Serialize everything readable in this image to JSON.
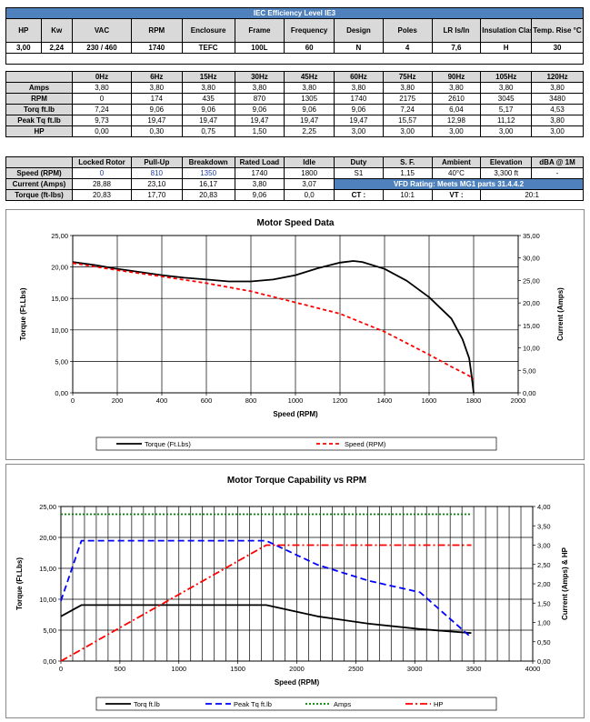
{
  "specs": {
    "title": "IEC Efficiency Level IE3",
    "headers": [
      "HP",
      "Kw",
      "VAC",
      "RPM",
      "Enclosure",
      "Frame",
      "Frequency",
      "Design",
      "Poles",
      "LR Is/In",
      "Insulation Class",
      "Temp. Rise °C"
    ],
    "values": [
      "3,00",
      "2,24",
      "230 / 460",
      "1740",
      "TEFC",
      "100L",
      "60",
      "N",
      "4",
      "7,6",
      "H",
      "30"
    ]
  },
  "freq_table": {
    "headers": [
      "0Hz",
      "6Hz",
      "15Hz",
      "30Hz",
      "45Hz",
      "60Hz",
      "75Hz",
      "90Hz",
      "105Hz",
      "120Hz"
    ],
    "rows": [
      {
        "label": "Amps",
        "values": [
          "3,80",
          "3,80",
          "3,80",
          "3,80",
          "3,80",
          "3,80",
          "3,80",
          "3,80",
          "3,80",
          "3,80"
        ]
      },
      {
        "label": "RPM",
        "values": [
          "0",
          "174",
          "435",
          "870",
          "1305",
          "1740",
          "2175",
          "2610",
          "3045",
          "3480"
        ]
      },
      {
        "label": "Torq ft.lb",
        "values": [
          "7,24",
          "9,06",
          "9,06",
          "9,06",
          "9,06",
          "9,06",
          "7,24",
          "6,04",
          "5,17",
          "4,53"
        ]
      },
      {
        "label": "Peak Tq ft.lb",
        "values": [
          "9,73",
          "19,47",
          "19,47",
          "19,47",
          "19,47",
          "19,47",
          "15,57",
          "12,98",
          "11,12",
          "3,80"
        ]
      },
      {
        "label": "HP",
        "values": [
          "0,00",
          "0,30",
          "0,75",
          "1,50",
          "2,25",
          "3,00",
          "3,00",
          "3,00",
          "3,00",
          "3,00"
        ]
      }
    ]
  },
  "perf_table": {
    "headers": [
      "Locked Rotor",
      "Pull-Up",
      "Breakdown",
      "Rated Load",
      "Idle",
      "Duty",
      "S. F.",
      "Ambient",
      "Elevation",
      "dBA @ 1M"
    ],
    "speed_label": "Speed (RPM)",
    "speed_values": [
      "0",
      "810",
      "1350",
      "1740",
      "1800"
    ],
    "current_label": "Current (Amps)",
    "current_values": [
      "28,88",
      "23,10",
      "16,17",
      "3,80",
      "3,07"
    ],
    "torque_label": "Torque (ft-lbs)",
    "torque_values": [
      "20,83",
      "17,70",
      "20,83",
      "9,06",
      "0,0"
    ],
    "duty": "S1",
    "sf": "1,15",
    "ambient": "40°C",
    "elevation": "3,300 ft",
    "dba": "-",
    "vfd_rating": "VFD Rating: Meets MG1 parts 31.4.4.2",
    "ct_label": "CT :",
    "ct_value": "10:1",
    "vt_label": "VT :",
    "vt_value": "20:1"
  },
  "chart_data": [
    {
      "type": "line",
      "title": "Motor Speed Data",
      "xlabel": "Speed (RPM)",
      "ylabel": "Torque (Ft.Lbs)",
      "y2label": "Current (Amps)",
      "xlim": [
        0,
        2000
      ],
      "ylim": [
        0,
        25
      ],
      "y2lim": [
        0,
        35
      ],
      "xticks": [
        "0",
        "200",
        "400",
        "600",
        "800",
        "1000",
        "1200",
        "1400",
        "1600",
        "1800",
        "2000"
      ],
      "yticks": [
        "0,00",
        "5,00",
        "10,00",
        "15,00",
        "20,00",
        "25,00"
      ],
      "y2ticks": [
        "0,00",
        "5,00",
        "10,00",
        "15,00",
        "20,00",
        "25,00",
        "30,00",
        "35,00"
      ],
      "series": [
        {
          "name": "Torque (Ft.Lbs)",
          "axis": "y",
          "color": "#000000",
          "dash": "solid",
          "x": [
            0,
            100,
            200,
            300,
            400,
            500,
            600,
            700,
            800,
            900,
            1000,
            1100,
            1200,
            1260,
            1300,
            1400,
            1500,
            1600,
            1700,
            1750,
            1780,
            1790,
            1795,
            1800
          ],
          "y": [
            20.8,
            20.3,
            19.7,
            19.2,
            18.7,
            18.3,
            18.0,
            17.7,
            17.7,
            18.0,
            18.7,
            19.8,
            20.7,
            20.95,
            20.8,
            19.7,
            17.8,
            15.2,
            11.8,
            8.5,
            5.5,
            3.0,
            1.5,
            0.0
          ]
        },
        {
          "name": "Speed (RPM)",
          "axis": "y2",
          "color": "#ff0000",
          "dash": "dashed",
          "x": [
            0,
            200,
            400,
            600,
            800,
            1000,
            1200,
            1400,
            1600,
            1700,
            1760,
            1790,
            1800
          ],
          "y": [
            28.88,
            27.3,
            25.9,
            24.4,
            22.6,
            20.1,
            17.6,
            13.6,
            8.5,
            5.8,
            4.3,
            3.5,
            3.07
          ]
        }
      ]
    },
    {
      "type": "line",
      "title": "Motor Torque Capability vs RPM",
      "xlabel": "Speed (RPM)",
      "ylabel": "Torque (Ft.Lbs)",
      "y2label": "Current (Amps) & HP",
      "xlim": [
        0,
        4000
      ],
      "ylim": [
        0,
        25
      ],
      "y2lim": [
        0,
        4
      ],
      "xticks": [
        "0",
        "500",
        "1000",
        "1500",
        "2000",
        "2500",
        "3000",
        "3500",
        "4000"
      ],
      "yticks": [
        "0,00",
        "5,00",
        "10,00",
        "15,00",
        "20,00",
        "25,00"
      ],
      "y2ticks": [
        "0,00",
        "0,50",
        "1,00",
        "1,50",
        "2,00",
        "2,50",
        "3,00",
        "3,50",
        "4,00"
      ],
      "series": [
        {
          "name": "Torq ft.lb",
          "axis": "y",
          "color": "#000000",
          "dash": "solid",
          "x": [
            0,
            174,
            435,
            870,
            1305,
            1740,
            2175,
            2610,
            3045,
            3480
          ],
          "y": [
            7.24,
            9.06,
            9.06,
            9.06,
            9.06,
            9.06,
            7.24,
            6.04,
            5.17,
            4.53
          ]
        },
        {
          "name": "Peak Tq ft.lb",
          "axis": "y",
          "color": "#0000ff",
          "dash": "longdash",
          "x": [
            0,
            174,
            435,
            870,
            1305,
            1740,
            2175,
            2610,
            3045,
            3480
          ],
          "y": [
            9.73,
            19.47,
            19.47,
            19.47,
            19.47,
            19.47,
            15.57,
            12.98,
            11.12,
            3.8
          ]
        },
        {
          "name": "Amps",
          "axis": "y2",
          "color": "#008000",
          "dash": "dotted",
          "x": [
            0,
            174,
            435,
            870,
            1305,
            1740,
            2175,
            2610,
            3045,
            3480
          ],
          "y": [
            3.8,
            3.8,
            3.8,
            3.8,
            3.8,
            3.8,
            3.8,
            3.8,
            3.8,
            3.8
          ]
        },
        {
          "name": "HP",
          "axis": "y2",
          "color": "#ff0000",
          "dash": "dashdot",
          "x": [
            0,
            174,
            435,
            870,
            1305,
            1740,
            2175,
            2610,
            3045,
            3480
          ],
          "y": [
            0.0,
            0.3,
            0.75,
            1.5,
            2.25,
            3.0,
            3.0,
            3.0,
            3.0,
            3.0
          ]
        }
      ]
    }
  ]
}
